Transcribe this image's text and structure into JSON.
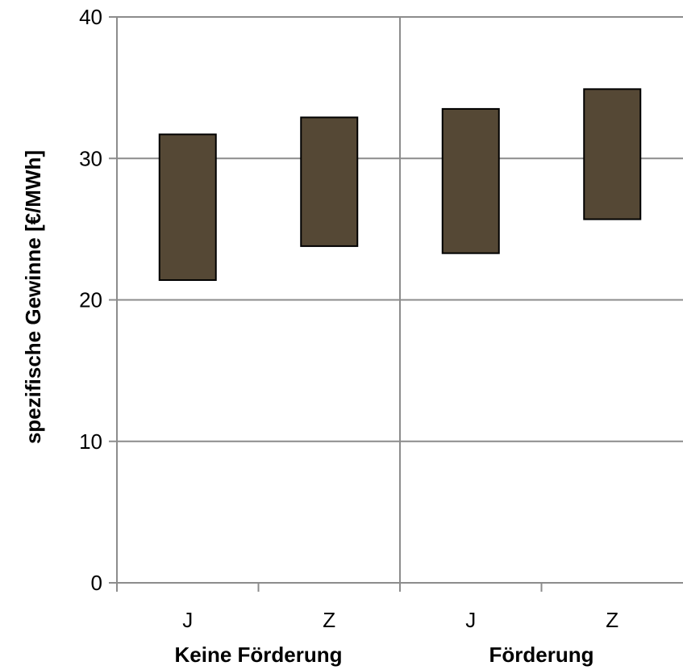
{
  "chart_data": {
    "type": "bar",
    "subtype": "floating-range",
    "title": "",
    "xlabel": "",
    "ylabel": "spezifische Gewinne [€/MWh]",
    "ylim": [
      0,
      40
    ],
    "yticks": [
      0,
      10,
      20,
      30,
      40
    ],
    "ytick_labels": [
      "0",
      "10",
      "20",
      "30",
      "40"
    ],
    "grid": true,
    "legend": "none",
    "groups": [
      "Keine Förderung",
      "Förderung"
    ],
    "categories": [
      "J",
      "Z",
      "J",
      "Z"
    ],
    "category_group": [
      0,
      0,
      1,
      1
    ],
    "series": [
      {
        "low": [
          21.4,
          23.8,
          23.3,
          25.7
        ],
        "high": [
          31.7,
          32.9,
          33.5,
          34.9
        ]
      }
    ],
    "colors": {
      "bar_fill": "#554835",
      "bar_stroke": "#000000",
      "grid": "#8c8c8c",
      "axis": "#8c8c8c"
    }
  }
}
